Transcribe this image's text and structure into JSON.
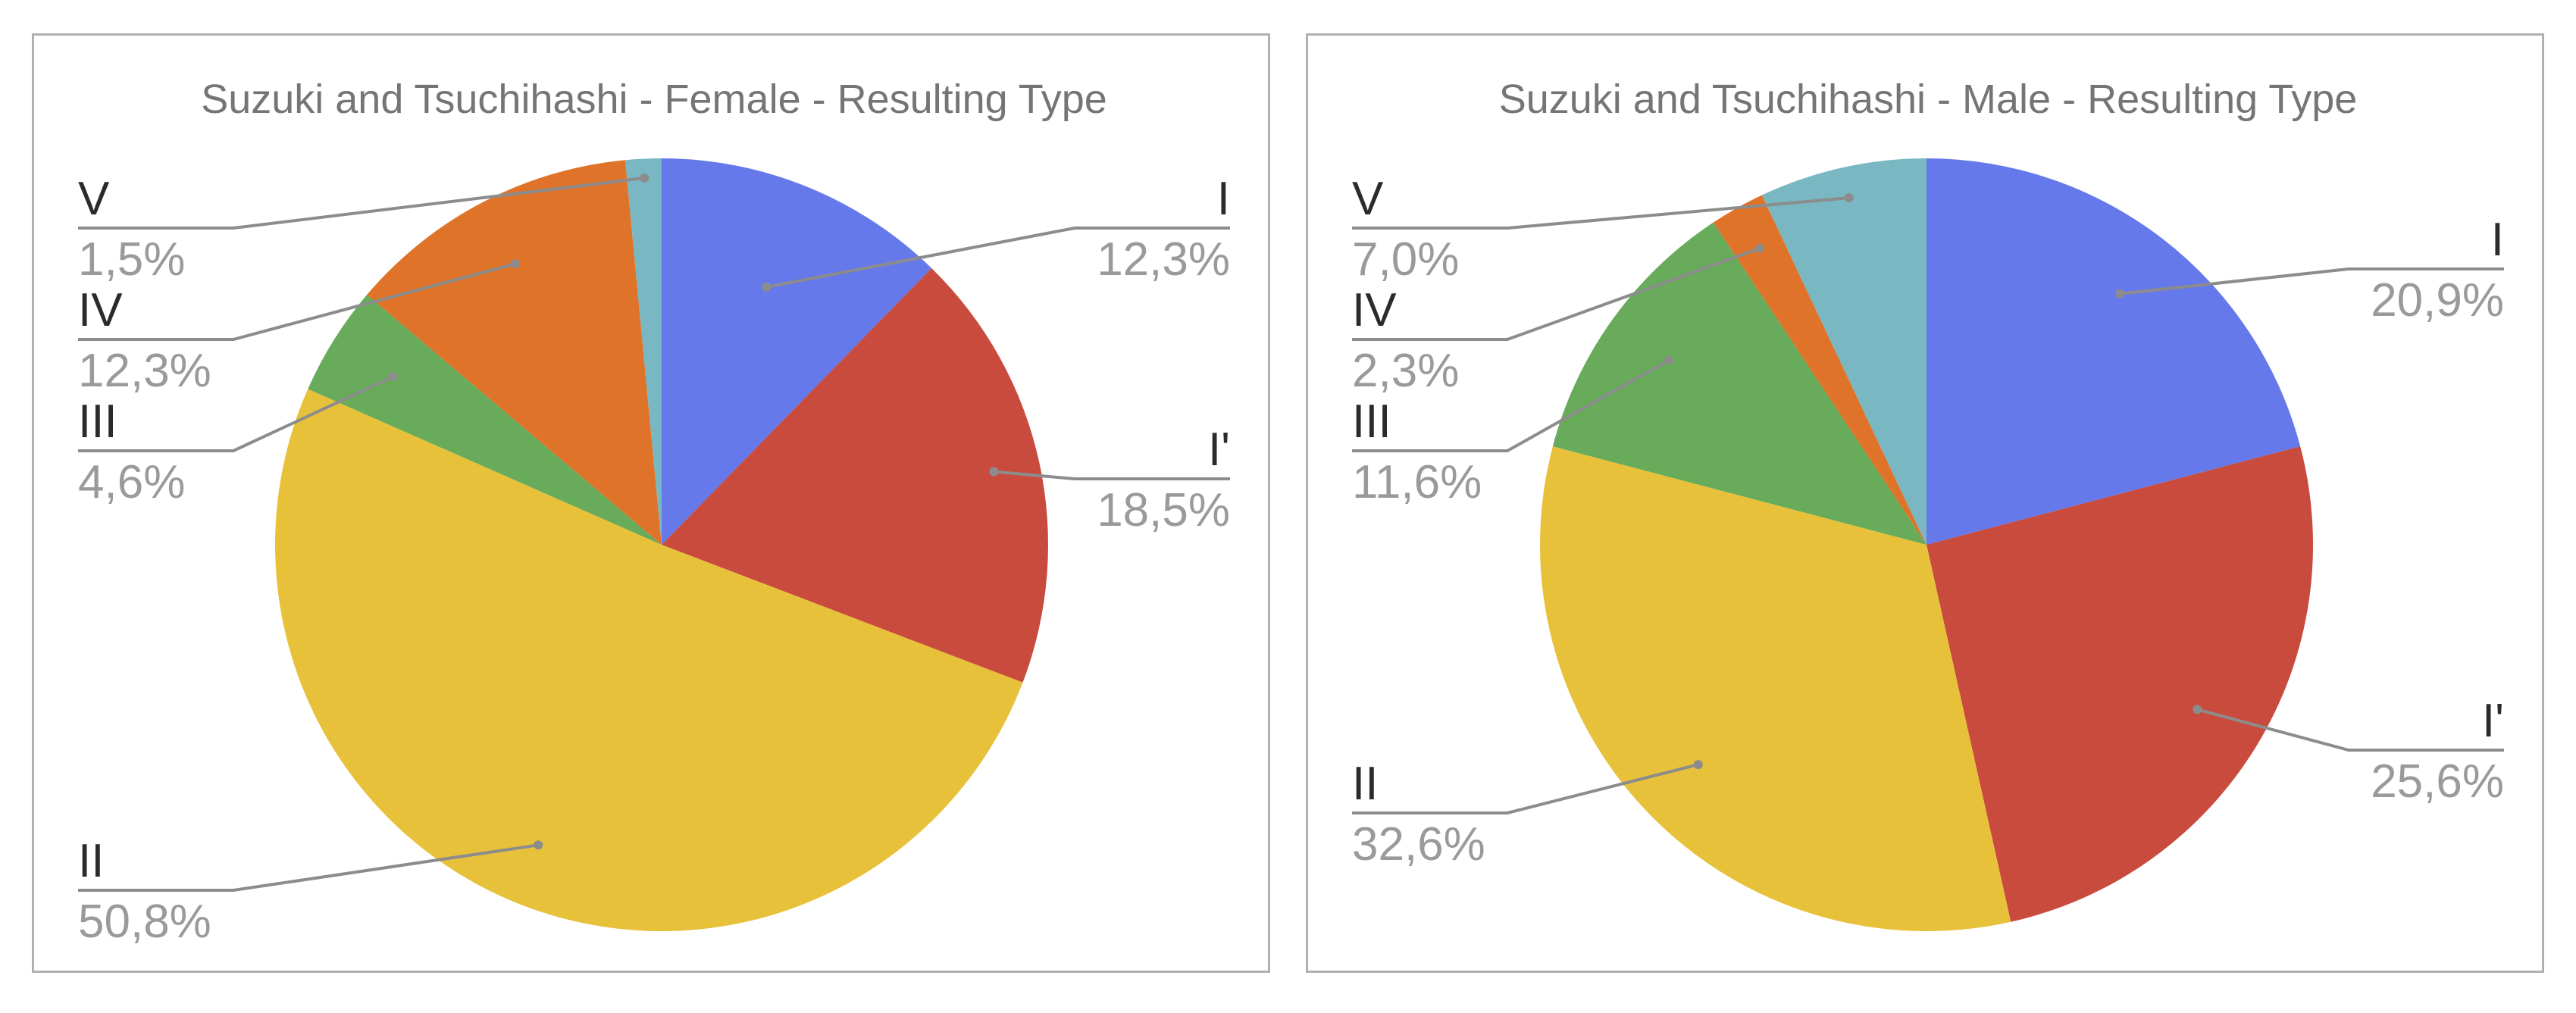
{
  "chart_data": [
    {
      "type": "pie",
      "title": "Suzuki and Tsuchihashi - Female - Resulting Type",
      "categories": [
        "I",
        "I'",
        "II",
        "III",
        "IV",
        "V"
      ],
      "values": [
        12.3,
        18.5,
        50.8,
        4.6,
        12.3,
        1.5
      ],
      "value_labels": [
        "12,3%",
        "18,5%",
        "50,8%",
        "4,6%",
        "12,3%",
        "1,5%"
      ],
      "colors": [
        "#6579EB",
        "#C94B3E",
        "#E8C13A",
        "#67AB5B",
        "#DE7329",
        "#79B7C3"
      ],
      "legend": "none (labels with leader lines)"
    },
    {
      "type": "pie",
      "title": "Suzuki and Tsuchihashi - Male - Resulting Type",
      "categories": [
        "I",
        "I'",
        "II",
        "III",
        "IV",
        "V"
      ],
      "values": [
        20.9,
        25.6,
        32.6,
        11.6,
        2.3,
        7.0
      ],
      "value_labels": [
        "20,9%",
        "25,6%",
        "32,6%",
        "11,6%",
        "2,3%",
        "7,0%"
      ],
      "colors": [
        "#6579EB",
        "#C94B3E",
        "#E8C13A",
        "#67AB5B",
        "#DE7329",
        "#79B7C3"
      ],
      "legend": "none (labels with leader lines)"
    }
  ]
}
